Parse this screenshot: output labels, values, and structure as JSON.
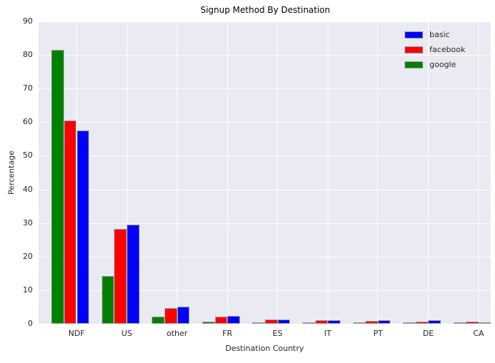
{
  "chart_data": {
    "type": "bar",
    "title": "Signup Method By Destination",
    "xlabel": "Destination Country",
    "ylabel": "Percentage",
    "categories": [
      "NDF",
      "US",
      "other",
      "FR",
      "ES",
      "IT",
      "PT",
      "DE",
      "CA"
    ],
    "series": [
      {
        "name": "basic",
        "color": "#0000ff",
        "values": [
          57.5,
          29.6,
          5.0,
          2.4,
          1.3,
          1.1,
          1.1,
          1.0,
          0.5
        ]
      },
      {
        "name": "facebook",
        "color": "#ff0000",
        "values": [
          60.5,
          28.2,
          4.6,
          2.2,
          1.2,
          1.1,
          0.8,
          0.7,
          0.55
        ]
      },
      {
        "name": "google",
        "color": "#008000",
        "values": [
          81.5,
          14.3,
          2.2,
          0.6,
          0.25,
          0.3,
          0.2,
          0.3,
          0.3
        ]
      }
    ],
    "group_draw_order": [
      "google",
      "facebook",
      "basic"
    ],
    "ylim": [
      0,
      90
    ],
    "yticks": [
      0,
      10,
      20,
      30,
      40,
      50,
      60,
      70,
      80,
      90
    ],
    "grid": true,
    "legend_position": "upper right",
    "colors": {
      "plot_bg": "#eaeaf2",
      "grid": "#ffffff",
      "bar_edge": "#9a9a9a",
      "text": "#262626"
    }
  }
}
